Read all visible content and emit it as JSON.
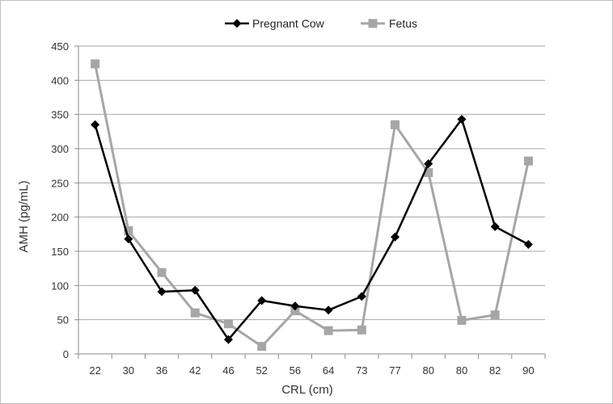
{
  "chart_data": {
    "type": "line",
    "title": "",
    "xlabel": "CRL  (cm)",
    "ylabel": "AMH  (pg/mL)",
    "categories": [
      "22",
      "30",
      "36",
      "42",
      "46",
      "52",
      "56",
      "64",
      "73",
      "77",
      "80",
      "80",
      "82",
      "90"
    ],
    "ylim": [
      0,
      450
    ],
    "yticks": [
      0,
      50,
      100,
      150,
      200,
      250,
      300,
      350,
      400,
      450
    ],
    "grid": "horizontal",
    "legend_position": "top",
    "series": [
      {
        "name": "Pregnant Cow",
        "color": "#000000",
        "marker": "diamond",
        "values": [
          335,
          168,
          91,
          93,
          21,
          78,
          70,
          64,
          84,
          171,
          278,
          343,
          186,
          160
        ]
      },
      {
        "name": "Fetus",
        "color": "#a6a6a6",
        "marker": "square",
        "values": [
          424,
          180,
          119,
          60,
          44,
          11,
          63,
          34,
          35,
          335,
          265,
          49,
          57,
          282
        ]
      }
    ]
  }
}
